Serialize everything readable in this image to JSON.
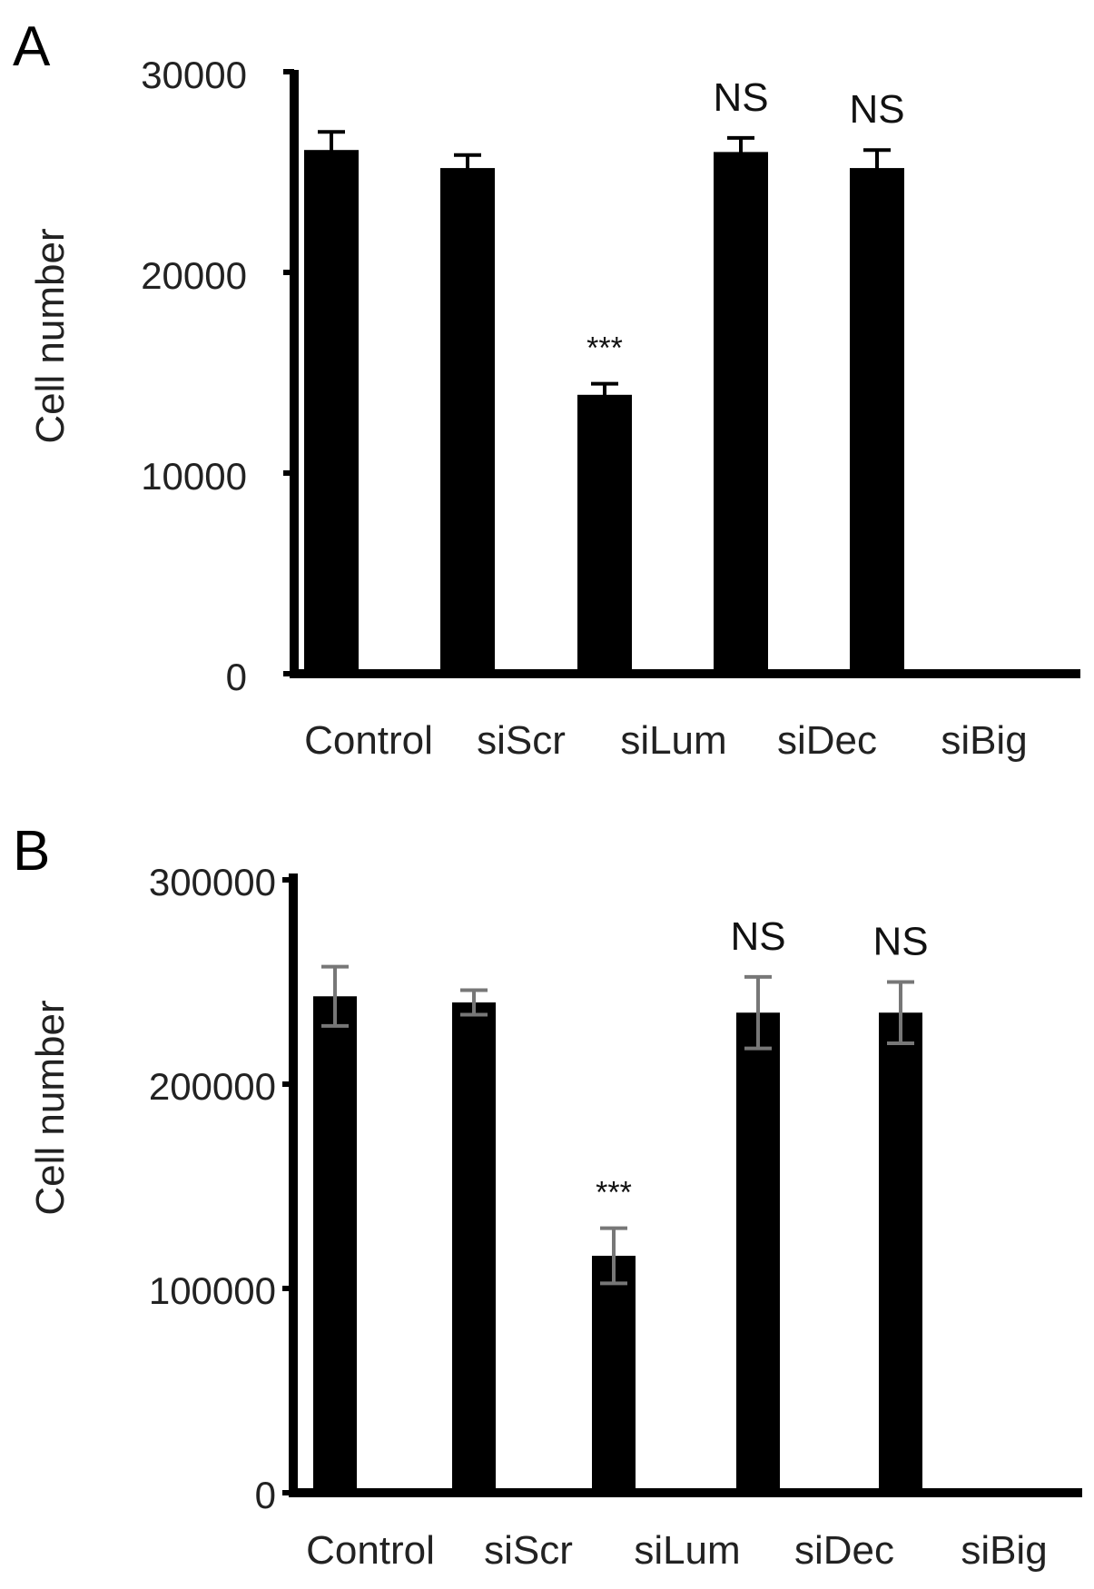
{
  "chart_data": [
    {
      "type": "bar",
      "panel": "A",
      "ylabel": "Cell number",
      "xlabel": "",
      "ylim": [
        0,
        30000
      ],
      "yticks": [
        "0",
        "10000",
        "20000",
        "30000"
      ],
      "ytick_values": [
        0,
        10000,
        20000,
        30000
      ],
      "categories": [
        "Control",
        "siScr",
        "siLum",
        "siDec",
        "siBig"
      ],
      "values": [
        26100,
        25200,
        13900,
        26000,
        25200
      ],
      "errors": [
        900,
        650,
        550,
        700,
        900
      ],
      "error_bar_color": "#000000",
      "annotations": [
        "",
        "",
        "***",
        "NS",
        "NS"
      ],
      "grid": false,
      "legend": "none"
    },
    {
      "type": "bar",
      "panel": "B",
      "ylabel": "Cell number",
      "xlabel": "",
      "ylim": [
        0,
        300000
      ],
      "yticks": [
        "0",
        "100000",
        "200000",
        "300000"
      ],
      "ytick_values": [
        0,
        100000,
        200000,
        300000
      ],
      "categories": [
        "Control",
        "siScr",
        "siLum",
        "siDec",
        "siBig"
      ],
      "values": [
        243000,
        240000,
        116000,
        235000,
        235000
      ],
      "errors": [
        14500,
        6000,
        13500,
        17500,
        15000
      ],
      "error_bar_color": "#777777",
      "annotations": [
        "",
        "",
        "***",
        "NS",
        "NS"
      ],
      "grid": false,
      "legend": "none"
    }
  ],
  "colors": {
    "bar": "#000000",
    "axis": "#000000"
  }
}
